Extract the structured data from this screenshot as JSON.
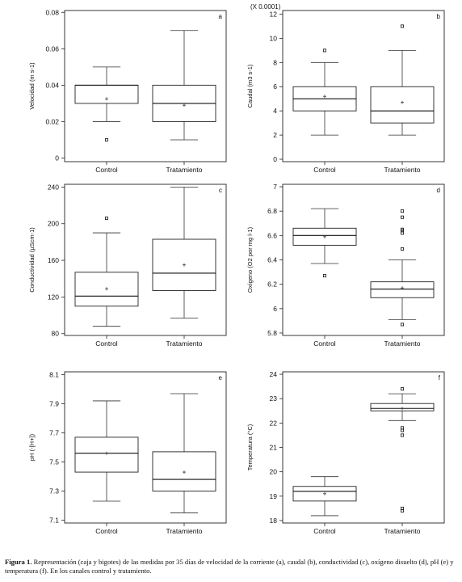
{
  "caption": {
    "label": "Figura 1.",
    "text": "Representación (caja y bigotes) de las medidas por 35 días de velocidad de la corriente (a), caudal (b), conductividad (c), oxígeno disuelto (d), pH (e) y temperatura (f). En los canales control y tratamiento."
  },
  "chart_data": [
    {
      "type": "box",
      "panel": "a",
      "multiplier": "",
      "ylabel": "Velocidad (m s-1)",
      "ylim": [
        -0.002,
        0.081
      ],
      "yticks": [
        0,
        0.02,
        0.04,
        0.06,
        0.08
      ],
      "ytick_labels": [
        "0",
        "0.02",
        "0.04",
        "0.06",
        "0.08"
      ],
      "categories": [
        "Control",
        "Tratamiento"
      ],
      "boxes": [
        {
          "whisker_low": 0.02,
          "q1": 0.03,
          "median": 0.04,
          "q3": 0.04,
          "whisker_high": 0.05,
          "mean": 0.0325,
          "outliers": [
            0.01
          ]
        },
        {
          "whisker_low": 0.01,
          "q1": 0.02,
          "median": 0.03,
          "q3": 0.04,
          "whisker_high": 0.07,
          "mean": 0.029,
          "outliers": []
        }
      ]
    },
    {
      "type": "box",
      "panel": "b",
      "multiplier": "(X 0.0001)",
      "ylabel": "Caudal (m3 s-1)",
      "ylim": [
        -0.2,
        12.3
      ],
      "yticks": [
        0,
        2,
        4,
        6,
        8,
        10,
        12
      ],
      "ytick_labels": [
        "0",
        "2",
        "4",
        "6",
        "8",
        "10",
        "12"
      ],
      "categories": [
        "Control",
        "Tratamiento"
      ],
      "boxes": [
        {
          "whisker_low": 2,
          "q1": 4,
          "median": 5,
          "q3": 6,
          "whisker_high": 8,
          "mean": 5.2,
          "outliers": [
            9
          ]
        },
        {
          "whisker_low": 2,
          "q1": 3,
          "median": 4,
          "q3": 6,
          "whisker_high": 9,
          "mean": 4.7,
          "outliers": [
            11
          ]
        }
      ]
    },
    {
      "type": "box",
      "panel": "c",
      "multiplier": "",
      "ylabel": "Conductividad (µScm-1)",
      "ylim": [
        78,
        243
      ],
      "yticks": [
        80,
        120,
        160,
        200,
        240
      ],
      "ytick_labels": [
        "80",
        "120",
        "160",
        "200",
        "240"
      ],
      "categories": [
        "Control",
        "Tratamiento"
      ],
      "boxes": [
        {
          "whisker_low": 88,
          "q1": 110,
          "median": 121,
          "q3": 147,
          "whisker_high": 190,
          "mean": 129,
          "outliers": [
            206
          ]
        },
        {
          "whisker_low": 97,
          "q1": 127,
          "median": 146,
          "q3": 183,
          "whisker_high": 240,
          "mean": 155,
          "outliers": []
        }
      ]
    },
    {
      "type": "box",
      "panel": "d",
      "multiplier": "",
      "ylabel": "Oxígeno (O2 por mg l-1)",
      "ylim": [
        5.78,
        7.02
      ],
      "yticks": [
        5.8,
        6,
        6.2,
        6.4,
        6.6,
        6.8,
        7
      ],
      "ytick_labels": [
        "5.8",
        "6",
        "6.2",
        "6.4",
        "6.6",
        "6.8",
        "7"
      ],
      "categories": [
        "Control",
        "Tratamiento"
      ],
      "boxes": [
        {
          "whisker_low": 6.37,
          "q1": 6.52,
          "median": 6.6,
          "q3": 6.66,
          "whisker_high": 6.82,
          "mean": 6.59,
          "outliers": [
            6.27
          ]
        },
        {
          "whisker_low": 5.91,
          "q1": 6.09,
          "median": 6.16,
          "q3": 6.22,
          "whisker_high": 6.4,
          "mean": 6.17,
          "outliers": [
            5.87,
            6.49,
            6.62,
            6.64,
            6.65,
            6.75,
            6.8
          ]
        }
      ]
    },
    {
      "type": "box",
      "panel": "e",
      "multiplier": "",
      "ylabel": "pH (-[H+])",
      "ylim": [
        7.08,
        8.12
      ],
      "yticks": [
        7.1,
        7.3,
        7.5,
        7.7,
        7.9,
        8.1
      ],
      "ytick_labels": [
        "7.1",
        "7.3",
        "7.5",
        "7.7",
        "7.9",
        "8.1"
      ],
      "categories": [
        "Control",
        "Tratamiento"
      ],
      "boxes": [
        {
          "whisker_low": 7.23,
          "q1": 7.43,
          "median": 7.56,
          "q3": 7.67,
          "whisker_high": 7.92,
          "mean": 7.56,
          "outliers": []
        },
        {
          "whisker_low": 7.15,
          "q1": 7.3,
          "median": 7.38,
          "q3": 7.57,
          "whisker_high": 7.97,
          "mean": 7.43,
          "outliers": []
        }
      ]
    },
    {
      "type": "box",
      "panel": "f",
      "multiplier": "",
      "ylabel": "Temperatura (°C)",
      "ylim": [
        17.9,
        24.1
      ],
      "yticks": [
        18,
        19,
        20,
        21,
        22,
        23,
        24
      ],
      "ytick_labels": [
        "18",
        "19",
        "20",
        "21",
        "22",
        "23",
        "24"
      ],
      "categories": [
        "Control",
        "Tratamiento"
      ],
      "boxes": [
        {
          "whisker_low": 18.2,
          "q1": 18.8,
          "median": 19.2,
          "q3": 19.4,
          "whisker_high": 19.8,
          "mean": 19.1,
          "outliers": []
        },
        {
          "whisker_low": 22.1,
          "q1": 22.5,
          "median": 22.6,
          "q3": 22.8,
          "whisker_high": 23.2,
          "mean": 22.6,
          "outliers": [
            18.4,
            18.5,
            21.5,
            21.7,
            21.8,
            23.4
          ]
        }
      ]
    }
  ]
}
